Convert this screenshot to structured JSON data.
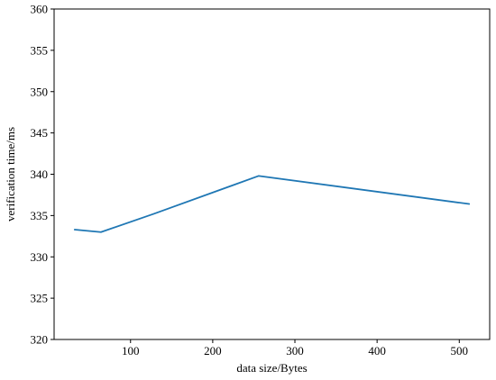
{
  "chart_data": {
    "type": "line",
    "title": "",
    "xlabel": "data size/Bytes",
    "ylabel": "verification time/ms",
    "xlim": [
      7,
      537
    ],
    "ylim": [
      320,
      360
    ],
    "xticks": [
      100,
      200,
      300,
      400,
      500
    ],
    "yticks": [
      320,
      325,
      330,
      335,
      340,
      345,
      350,
      355,
      360
    ],
    "grid": false,
    "series": [
      {
        "color": "#1f77b4",
        "x": [
          32,
          64,
          128,
          256,
          512
        ],
        "y": [
          333.3,
          333.0,
          335.2,
          339.8,
          336.4
        ]
      }
    ]
  }
}
